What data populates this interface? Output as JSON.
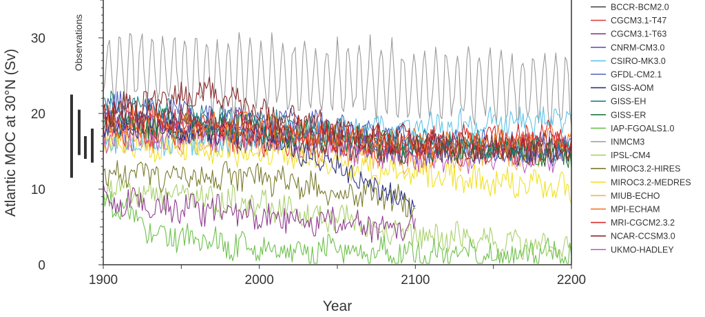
{
  "chart_data": {
    "type": "line",
    "xlabel": "Year",
    "ylabel": "Atlantic MOC at  30°N (Sv)",
    "xlim": [
      1900,
      2200
    ],
    "ylim": [
      0,
      35
    ],
    "xticks": [
      1900,
      2000,
      2100,
      2200
    ],
    "yticks": [
      0,
      10,
      20,
      30
    ],
    "x_minor_step": 50,
    "grid": false,
    "legend_position": "right",
    "observations": {
      "label": "Observations",
      "ranges": [
        [
          11.5,
          22.5
        ],
        [
          14.5,
          20.5
        ],
        [
          14,
          17
        ],
        [
          13.5,
          18
        ]
      ]
    },
    "series": [
      {
        "name": "BCCR-BCM2.0",
        "color": "#404040",
        "start_year": 1900,
        "end_year": 2200,
        "points": [
          [
            1900,
            19
          ],
          [
            2000,
            17
          ],
          [
            2100,
            15
          ],
          [
            2200,
            15
          ]
        ]
      },
      {
        "name": "CGCM3.1-T47",
        "color": "#e03c3c",
        "start_year": 1900,
        "end_year": 2200,
        "points": [
          [
            1900,
            18
          ],
          [
            2000,
            16.5
          ],
          [
            2100,
            15
          ],
          [
            2200,
            15.5
          ]
        ]
      },
      {
        "name": "CGCM3.1-T63",
        "color": "#8e3a8e",
        "start_year": 1900,
        "end_year": 2100,
        "points": [
          [
            1900,
            8.5
          ],
          [
            2000,
            6.5
          ],
          [
            2100,
            4.5
          ]
        ]
      },
      {
        "name": "CNRM-CM3.0",
        "color": "#6f4fb8",
        "start_year": 1900,
        "end_year": 2200,
        "points": [
          [
            1900,
            19.5
          ],
          [
            2000,
            18
          ],
          [
            2100,
            15
          ],
          [
            2200,
            15.5
          ]
        ]
      },
      {
        "name": "CSIRO-MK3.0",
        "color": "#5ec3e8",
        "start_year": 1900,
        "end_year": 2200,
        "points": [
          [
            1900,
            16
          ],
          [
            2000,
            17
          ],
          [
            2100,
            18
          ],
          [
            2200,
            19.5
          ]
        ]
      },
      {
        "name": "GFDL-CM2.1",
        "color": "#4a5fc0",
        "start_year": 1900,
        "end_year": 2200,
        "points": [
          [
            1900,
            21
          ],
          [
            2000,
            19.5
          ],
          [
            2100,
            16.5
          ],
          [
            2200,
            15
          ]
        ]
      },
      {
        "name": "GISS-AOM",
        "color": "#2b2f85",
        "start_year": 1900,
        "end_year": 2100,
        "points": [
          [
            1900,
            18.5
          ],
          [
            2000,
            17.5
          ],
          [
            2050,
            13
          ],
          [
            2100,
            7.5
          ]
        ]
      },
      {
        "name": "GISS-EH",
        "color": "#1a8080",
        "start_year": 1900,
        "end_year": 2200,
        "points": [
          [
            1900,
            21
          ],
          [
            2000,
            19
          ],
          [
            2100,
            16
          ],
          [
            2200,
            15
          ]
        ]
      },
      {
        "name": "GISS-ER",
        "color": "#1f7a3a",
        "start_year": 1900,
        "end_year": 2200,
        "points": [
          [
            1900,
            19
          ],
          [
            2000,
            18
          ],
          [
            2100,
            15.5
          ],
          [
            2200,
            15
          ]
        ]
      },
      {
        "name": "IAP-FGOALS1.0",
        "color": "#6cc04a",
        "start_year": 1900,
        "end_year": 2200,
        "points": [
          [
            1900,
            9
          ],
          [
            1935,
            4
          ],
          [
            2000,
            2
          ],
          [
            2100,
            1.5
          ],
          [
            2200,
            1.5
          ]
        ]
      },
      {
        "name": "INMCM3",
        "color": "#9a9a9a",
        "start_year": 1900,
        "end_year": 2200,
        "points": [
          [
            1900,
            26
          ],
          [
            2000,
            25
          ],
          [
            2100,
            24
          ],
          [
            2200,
            23
          ]
        ]
      },
      {
        "name": "IPSL-CM4",
        "color": "#a8d06a",
        "start_year": 1900,
        "end_year": 2200,
        "points": [
          [
            1900,
            10
          ],
          [
            2000,
            8
          ],
          [
            2100,
            4
          ],
          [
            2200,
            2
          ]
        ]
      },
      {
        "name": "MIROC3.2-HIRES",
        "color": "#7a7a2e",
        "start_year": 1900,
        "end_year": 2100,
        "points": [
          [
            1900,
            12
          ],
          [
            2000,
            11.5
          ],
          [
            2100,
            8
          ]
        ]
      },
      {
        "name": "MIROC3.2-MEDRES",
        "color": "#f0e020",
        "start_year": 1900,
        "end_year": 2200,
        "points": [
          [
            1900,
            16
          ],
          [
            2000,
            15
          ],
          [
            2100,
            12
          ],
          [
            2200,
            10
          ]
        ]
      },
      {
        "name": "MIUB-ECHO",
        "color": "#f2b24a",
        "start_year": 1900,
        "end_year": 2200,
        "points": [
          [
            1900,
            17
          ],
          [
            2000,
            16
          ],
          [
            2100,
            14
          ],
          [
            2200,
            15
          ]
        ]
      },
      {
        "name": "MPI-ECHAM",
        "color": "#f07020",
        "start_year": 1900,
        "end_year": 2200,
        "points": [
          [
            1900,
            19
          ],
          [
            2000,
            18
          ],
          [
            2100,
            16
          ],
          [
            2200,
            16.5
          ]
        ]
      },
      {
        "name": "MRI-CGCM2.3.2",
        "color": "#d82828",
        "start_year": 1900,
        "end_year": 2200,
        "points": [
          [
            1900,
            20
          ],
          [
            2000,
            18
          ],
          [
            2100,
            16
          ],
          [
            2200,
            17
          ]
        ]
      },
      {
        "name": "NCAR-CCSM3.0",
        "color": "#8b2a2a",
        "start_year": 1900,
        "end_year": 2200,
        "points": [
          [
            1900,
            20
          ],
          [
            1965,
            23
          ],
          [
            2000,
            20
          ],
          [
            2100,
            16
          ],
          [
            2200,
            15
          ]
        ]
      },
      {
        "name": "UKMO-HADLEY",
        "color": "#c060c0",
        "start_year": 1900,
        "end_year": 2200,
        "points": [
          [
            1900,
            17
          ],
          [
            2000,
            17
          ],
          [
            2100,
            14
          ],
          [
            2200,
            14.5
          ]
        ]
      }
    ]
  }
}
